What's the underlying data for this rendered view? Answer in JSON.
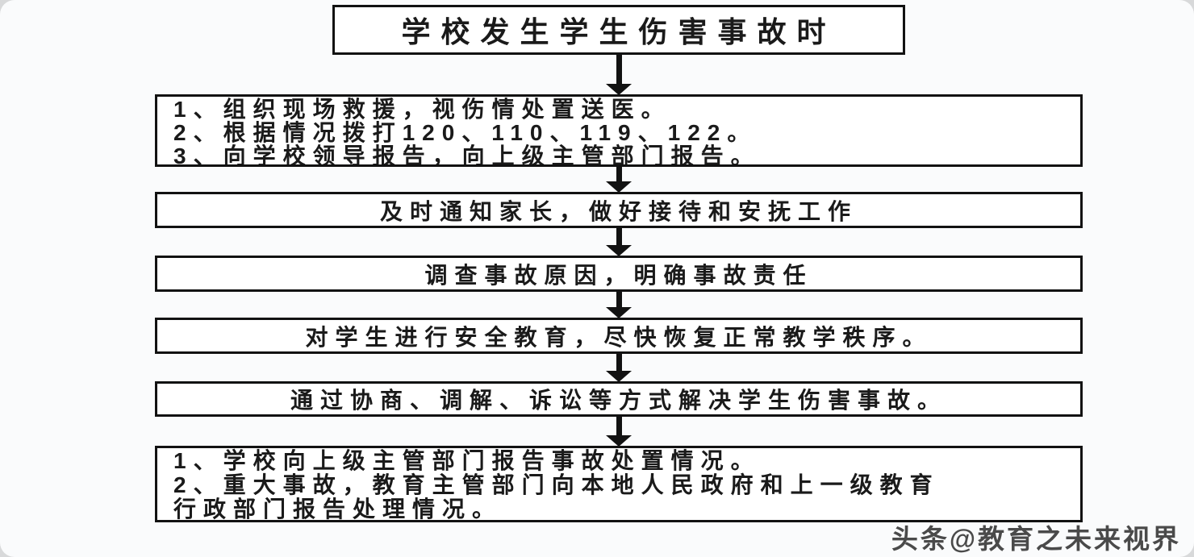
{
  "flowchart": {
    "title": "学校发生学生伤害事故时",
    "steps": {
      "emergency": {
        "lines": [
          "1、组织现场救援，视伤情处置送医。",
          "2、根据情况拨打120、110、119、122。",
          "3、向学校领导报告，向上级主管部门报告。"
        ]
      },
      "notify_parents": {
        "text": "及时通知家长，做好接待和安抚工作"
      },
      "investigate": {
        "text": "调查事故原因，明确事故责任"
      },
      "educate": {
        "text": "对学生进行安全教育，尽快恢复正常教学秩序。"
      },
      "resolve": {
        "text": "通过协商、调解、诉讼等方式解决学生伤害事故。"
      },
      "final_report": {
        "lines": [
          "1、学校向上级主管部门报告事故处置情况。",
          "2、重大事故，教育主管部门向本地人民政府和上一级教育",
          "行政部门报告处理情况。"
        ]
      }
    }
  },
  "watermark": {
    "text": "头条@教育之未来视界"
  },
  "colors": {
    "border": "#121212",
    "box_background": "#ffffff",
    "canvas_background": "#fafbfc",
    "text": "#1a1a1a",
    "watermark_text": "#4a4a4a"
  }
}
